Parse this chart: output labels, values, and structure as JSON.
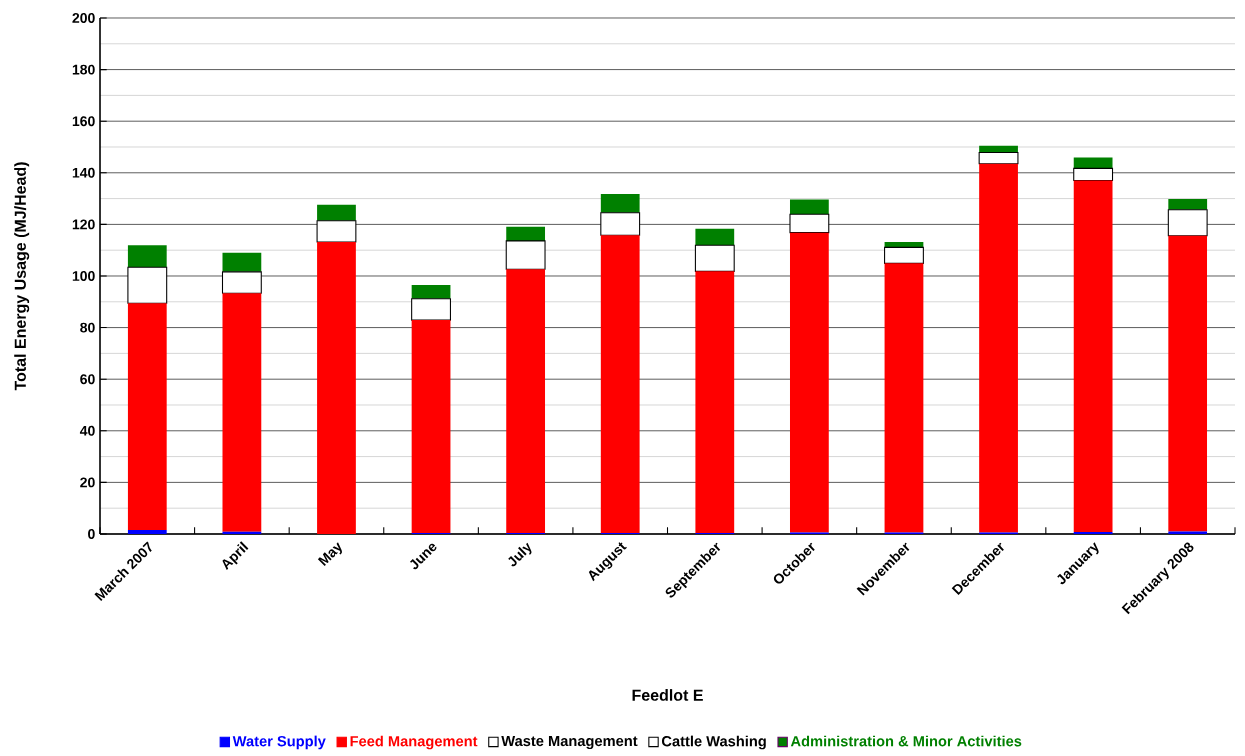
{
  "chart_data": {
    "type": "bar",
    "stacked": true,
    "xlabel": "Feedlot E",
    "ylabel": "Total Energy Usage (MJ/Head)",
    "categories": [
      "March 2007",
      "April",
      "May",
      "June",
      "July",
      "August",
      "September",
      "October",
      "November",
      "December",
      "January",
      "February 2008"
    ],
    "series": [
      {
        "name": "Water Supply",
        "color": "#0000ff",
        "values": [
          1.5,
          0.9,
          0,
          0.4,
          0.4,
          0.4,
          0.4,
          0.6,
          0.6,
          0.6,
          0.8,
          1.0
        ]
      },
      {
        "name": "Feed Management",
        "color": "#ff0000",
        "values": [
          87.9,
          92.4,
          113.2,
          82.5,
          102.2,
          115.4,
          101.4,
          116.2,
          104.3,
          142.9,
          136.2,
          114.6
        ]
      },
      {
        "name": "Waste Management",
        "color": "#ffffff",
        "values": [
          14.0,
          8.3,
          8.2,
          8.3,
          11.0,
          8.7,
          10.1,
          7.1,
          6.2,
          4.4,
          4.7,
          10.1
        ]
      },
      {
        "name": "Cattle Washing",
        "color": "#ffffff",
        "values": [
          0,
          0,
          0,
          0,
          0,
          0,
          0,
          0,
          0,
          0,
          0,
          0
        ]
      },
      {
        "name": "Administration & Minor Activities",
        "color": "#008000",
        "values": [
          8.5,
          7.4,
          6.2,
          5.3,
          5.5,
          7.3,
          6.4,
          5.7,
          2.1,
          2.6,
          4.2,
          4.1
        ]
      }
    ],
    "ylim": [
      0,
      200
    ],
    "yticks": [
      0,
      20,
      40,
      60,
      80,
      100,
      120,
      140,
      160,
      180,
      200
    ],
    "grid": "y",
    "legend": "bottom"
  }
}
